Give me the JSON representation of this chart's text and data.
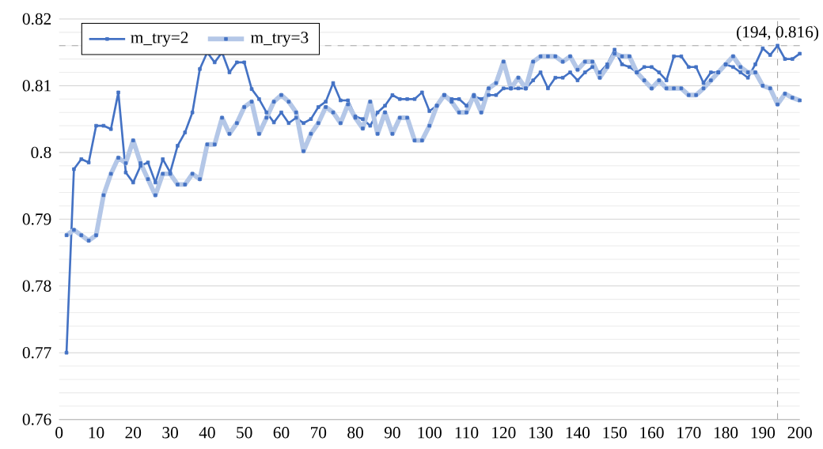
{
  "chart_data": {
    "type": "line",
    "x": [
      2,
      4,
      6,
      8,
      10,
      12,
      14,
      16,
      18,
      20,
      22,
      24,
      26,
      28,
      30,
      32,
      34,
      36,
      38,
      40,
      42,
      44,
      46,
      48,
      50,
      52,
      54,
      56,
      58,
      60,
      62,
      64,
      66,
      68,
      70,
      72,
      74,
      76,
      78,
      80,
      82,
      84,
      86,
      88,
      90,
      92,
      94,
      96,
      98,
      100,
      102,
      104,
      106,
      108,
      110,
      112,
      114,
      116,
      118,
      120,
      122,
      124,
      126,
      128,
      130,
      132,
      134,
      136,
      138,
      140,
      142,
      144,
      146,
      148,
      150,
      152,
      154,
      156,
      158,
      160,
      162,
      164,
      166,
      168,
      170,
      172,
      174,
      176,
      178,
      180,
      182,
      184,
      186,
      188,
      190,
      192,
      194,
      196,
      198,
      200
    ],
    "series": [
      {
        "name": "m_try=2",
        "color": "#4472c4",
        "values": [
          0.77,
          0.7975,
          0.799,
          0.7985,
          0.804,
          0.804,
          0.8035,
          0.809,
          0.797,
          0.7955,
          0.798,
          0.7985,
          0.7955,
          0.799,
          0.797,
          0.801,
          0.803,
          0.806,
          0.8125,
          0.815,
          0.8135,
          0.815,
          0.812,
          0.8135,
          0.8135,
          0.8095,
          0.808,
          0.806,
          0.8045,
          0.806,
          0.8044,
          0.8052,
          0.8044,
          0.805,
          0.8068,
          0.8076,
          0.8104,
          0.8078,
          0.8078,
          0.8054,
          0.805,
          0.804,
          0.806,
          0.807,
          0.8086,
          0.808,
          0.808,
          0.808,
          0.809,
          0.8062,
          0.807,
          0.8086,
          0.808,
          0.808,
          0.807,
          0.8084,
          0.808,
          0.8086,
          0.8086,
          0.8096,
          0.8096,
          0.8096,
          0.8096,
          0.8108,
          0.812,
          0.8096,
          0.8112,
          0.8112,
          0.812,
          0.8108,
          0.812,
          0.8128,
          0.812,
          0.8132,
          0.8154,
          0.8132,
          0.8128,
          0.812,
          0.8128,
          0.8128,
          0.812,
          0.8108,
          0.8144,
          0.8144,
          0.8128,
          0.8128,
          0.8104,
          0.812,
          0.812,
          0.8132,
          0.8128,
          0.812,
          0.8112,
          0.8132,
          0.8156,
          0.8146,
          0.816,
          0.814,
          0.814,
          0.8148
        ]
      },
      {
        "name": "m_try=3",
        "color": "#b4c7e7",
        "values": [
          0.7876,
          0.7884,
          0.7876,
          0.7868,
          0.7876,
          0.7936,
          0.7968,
          0.7992,
          0.7984,
          0.8018,
          0.7984,
          0.796,
          0.7936,
          0.7968,
          0.7968,
          0.7952,
          0.7952,
          0.7968,
          0.796,
          0.8012,
          0.8012,
          0.8052,
          0.8028,
          0.8044,
          0.8068,
          0.8076,
          0.8028,
          0.8052,
          0.8076,
          0.8086,
          0.8076,
          0.806,
          0.8002,
          0.8028,
          0.8044,
          0.8068,
          0.806,
          0.8044,
          0.8072,
          0.8052,
          0.8036,
          0.8076,
          0.8028,
          0.806,
          0.8028,
          0.8052,
          0.8052,
          0.8018,
          0.8018,
          0.804,
          0.807,
          0.8086,
          0.8076,
          0.806,
          0.806,
          0.8086,
          0.806,
          0.8096,
          0.8104,
          0.8136,
          0.8096,
          0.8112,
          0.8096,
          0.8136,
          0.8144,
          0.8144,
          0.8144,
          0.8136,
          0.8144,
          0.8124,
          0.8136,
          0.8136,
          0.8112,
          0.8128,
          0.8148,
          0.8144,
          0.8144,
          0.812,
          0.8108,
          0.8096,
          0.8108,
          0.8096,
          0.8096,
          0.8096,
          0.8086,
          0.8086,
          0.8096,
          0.8108,
          0.812,
          0.8132,
          0.8144,
          0.8128,
          0.812,
          0.812,
          0.81,
          0.8096,
          0.8072,
          0.8088,
          0.8082,
          0.8078
        ]
      }
    ],
    "xlim": [
      0,
      200
    ],
    "xticks": [
      0,
      10,
      20,
      30,
      40,
      50,
      60,
      70,
      80,
      90,
      100,
      110,
      120,
      130,
      140,
      150,
      160,
      170,
      180,
      190,
      200
    ],
    "ylim": [
      0.76,
      0.82
    ],
    "yticks": [
      0.76,
      0.77,
      0.78,
      0.79,
      0.8,
      0.81,
      0.82
    ],
    "grid": "y",
    "legend": "top left",
    "marker": "square",
    "ref_lines": [
      {
        "axis": "x",
        "value": 194,
        "color": "#a6a6a6",
        "line_style": "dashed"
      },
      {
        "axis": "y",
        "value": 0.816,
        "color": "#a6a6a6",
        "line_style": "dashed"
      }
    ],
    "annotations": [
      {
        "text": "(194, 0.816)",
        "x": 194,
        "y": 0.816
      }
    ]
  }
}
